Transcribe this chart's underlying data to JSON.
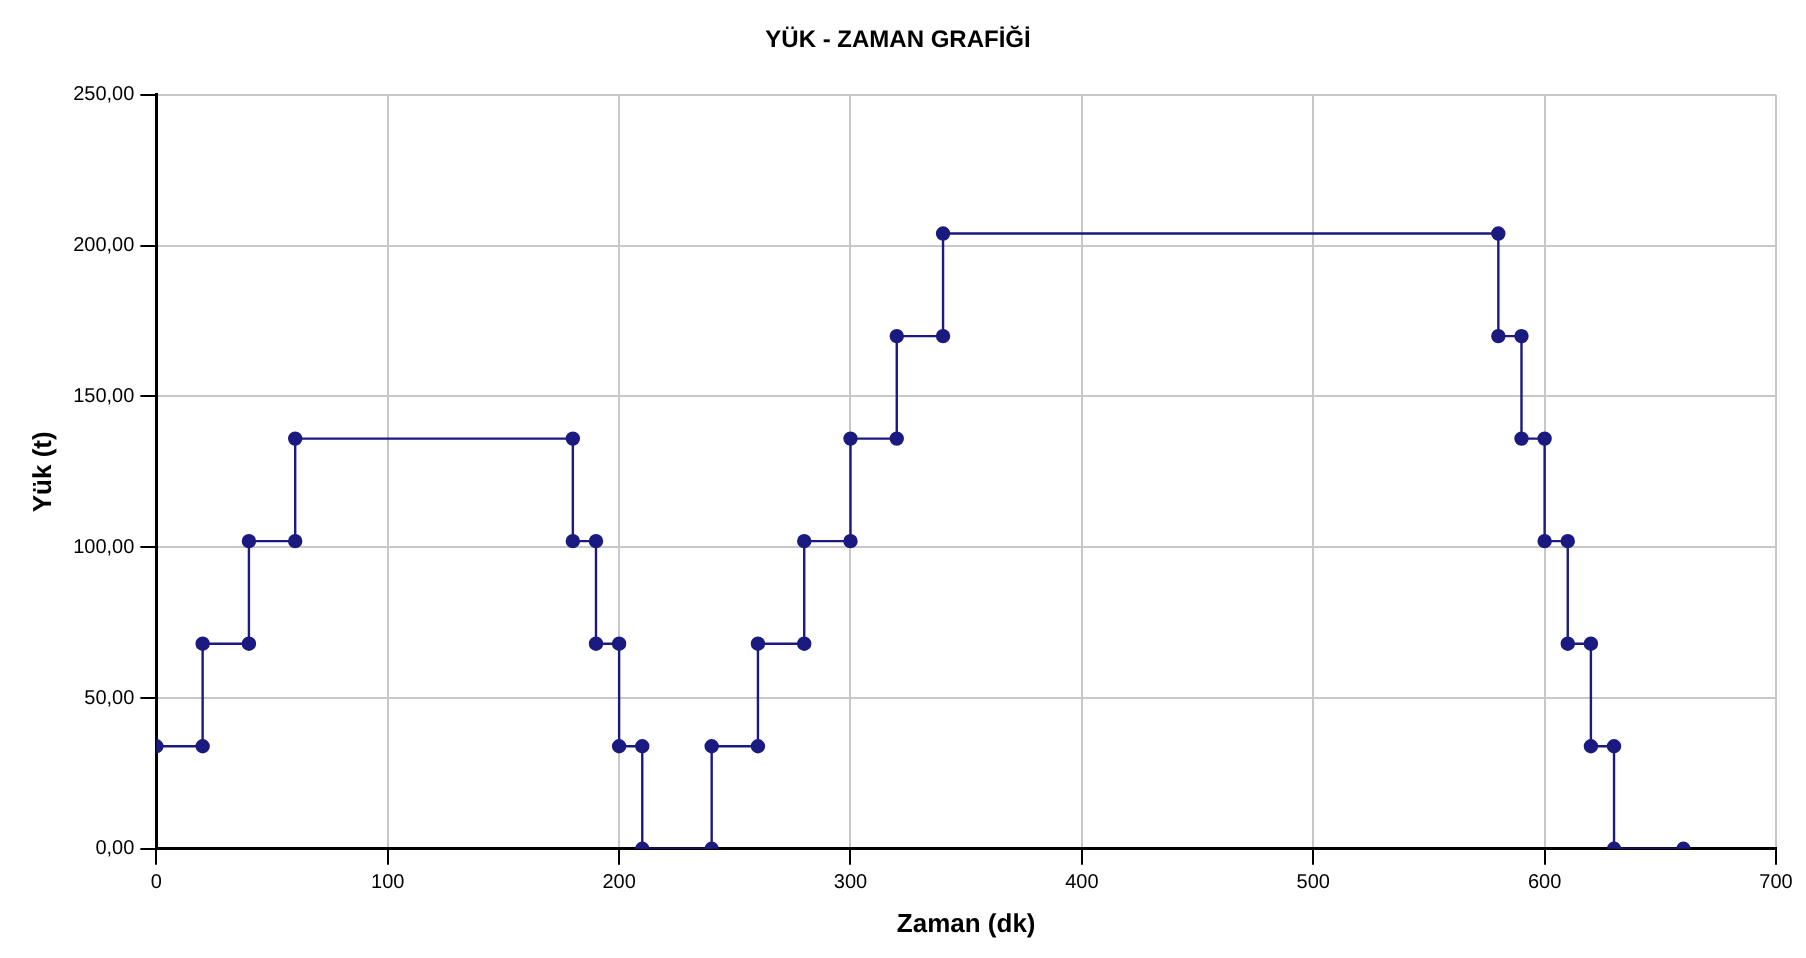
{
  "chart_data": {
    "type": "line",
    "title": "YÜK - ZAMAN GRAFİĞİ",
    "xlabel": "Zaman (dk)",
    "ylabel": "Yük (t)",
    "x": [
      0,
      20,
      20,
      40,
      40,
      60,
      60,
      180,
      180,
      190,
      190,
      200,
      200,
      210,
      210,
      240,
      240,
      260,
      260,
      280,
      280,
      300,
      300,
      320,
      320,
      340,
      340,
      580,
      580,
      590,
      590,
      600,
      600,
      610,
      610,
      620,
      620,
      630,
      630,
      660
    ],
    "values": [
      34,
      34,
      68,
      68,
      102,
      102,
      136,
      136,
      102,
      102,
      68,
      68,
      34,
      34,
      0,
      0,
      34,
      34,
      68,
      68,
      102,
      102,
      136,
      136,
      170,
      170,
      204,
      204,
      170,
      170,
      136,
      136,
      102,
      102,
      68,
      68,
      34,
      34,
      0,
      0
    ],
    "color": "#1a1a80",
    "xlim": [
      0,
      700
    ],
    "xticks": [
      0,
      100,
      200,
      300,
      400,
      500,
      600,
      700
    ],
    "ylim": [
      0,
      250
    ],
    "yticks": [
      {
        "value": 0,
        "label": "0,00"
      },
      {
        "value": 50,
        "label": "50,00"
      },
      {
        "value": 100,
        "label": "100,00"
      },
      {
        "value": 150,
        "label": "150,00"
      },
      {
        "value": 200,
        "label": "200,00"
      },
      {
        "value": 250,
        "label": "250,00"
      }
    ],
    "grid": true,
    "marker": "circle",
    "line_style": "solid"
  }
}
